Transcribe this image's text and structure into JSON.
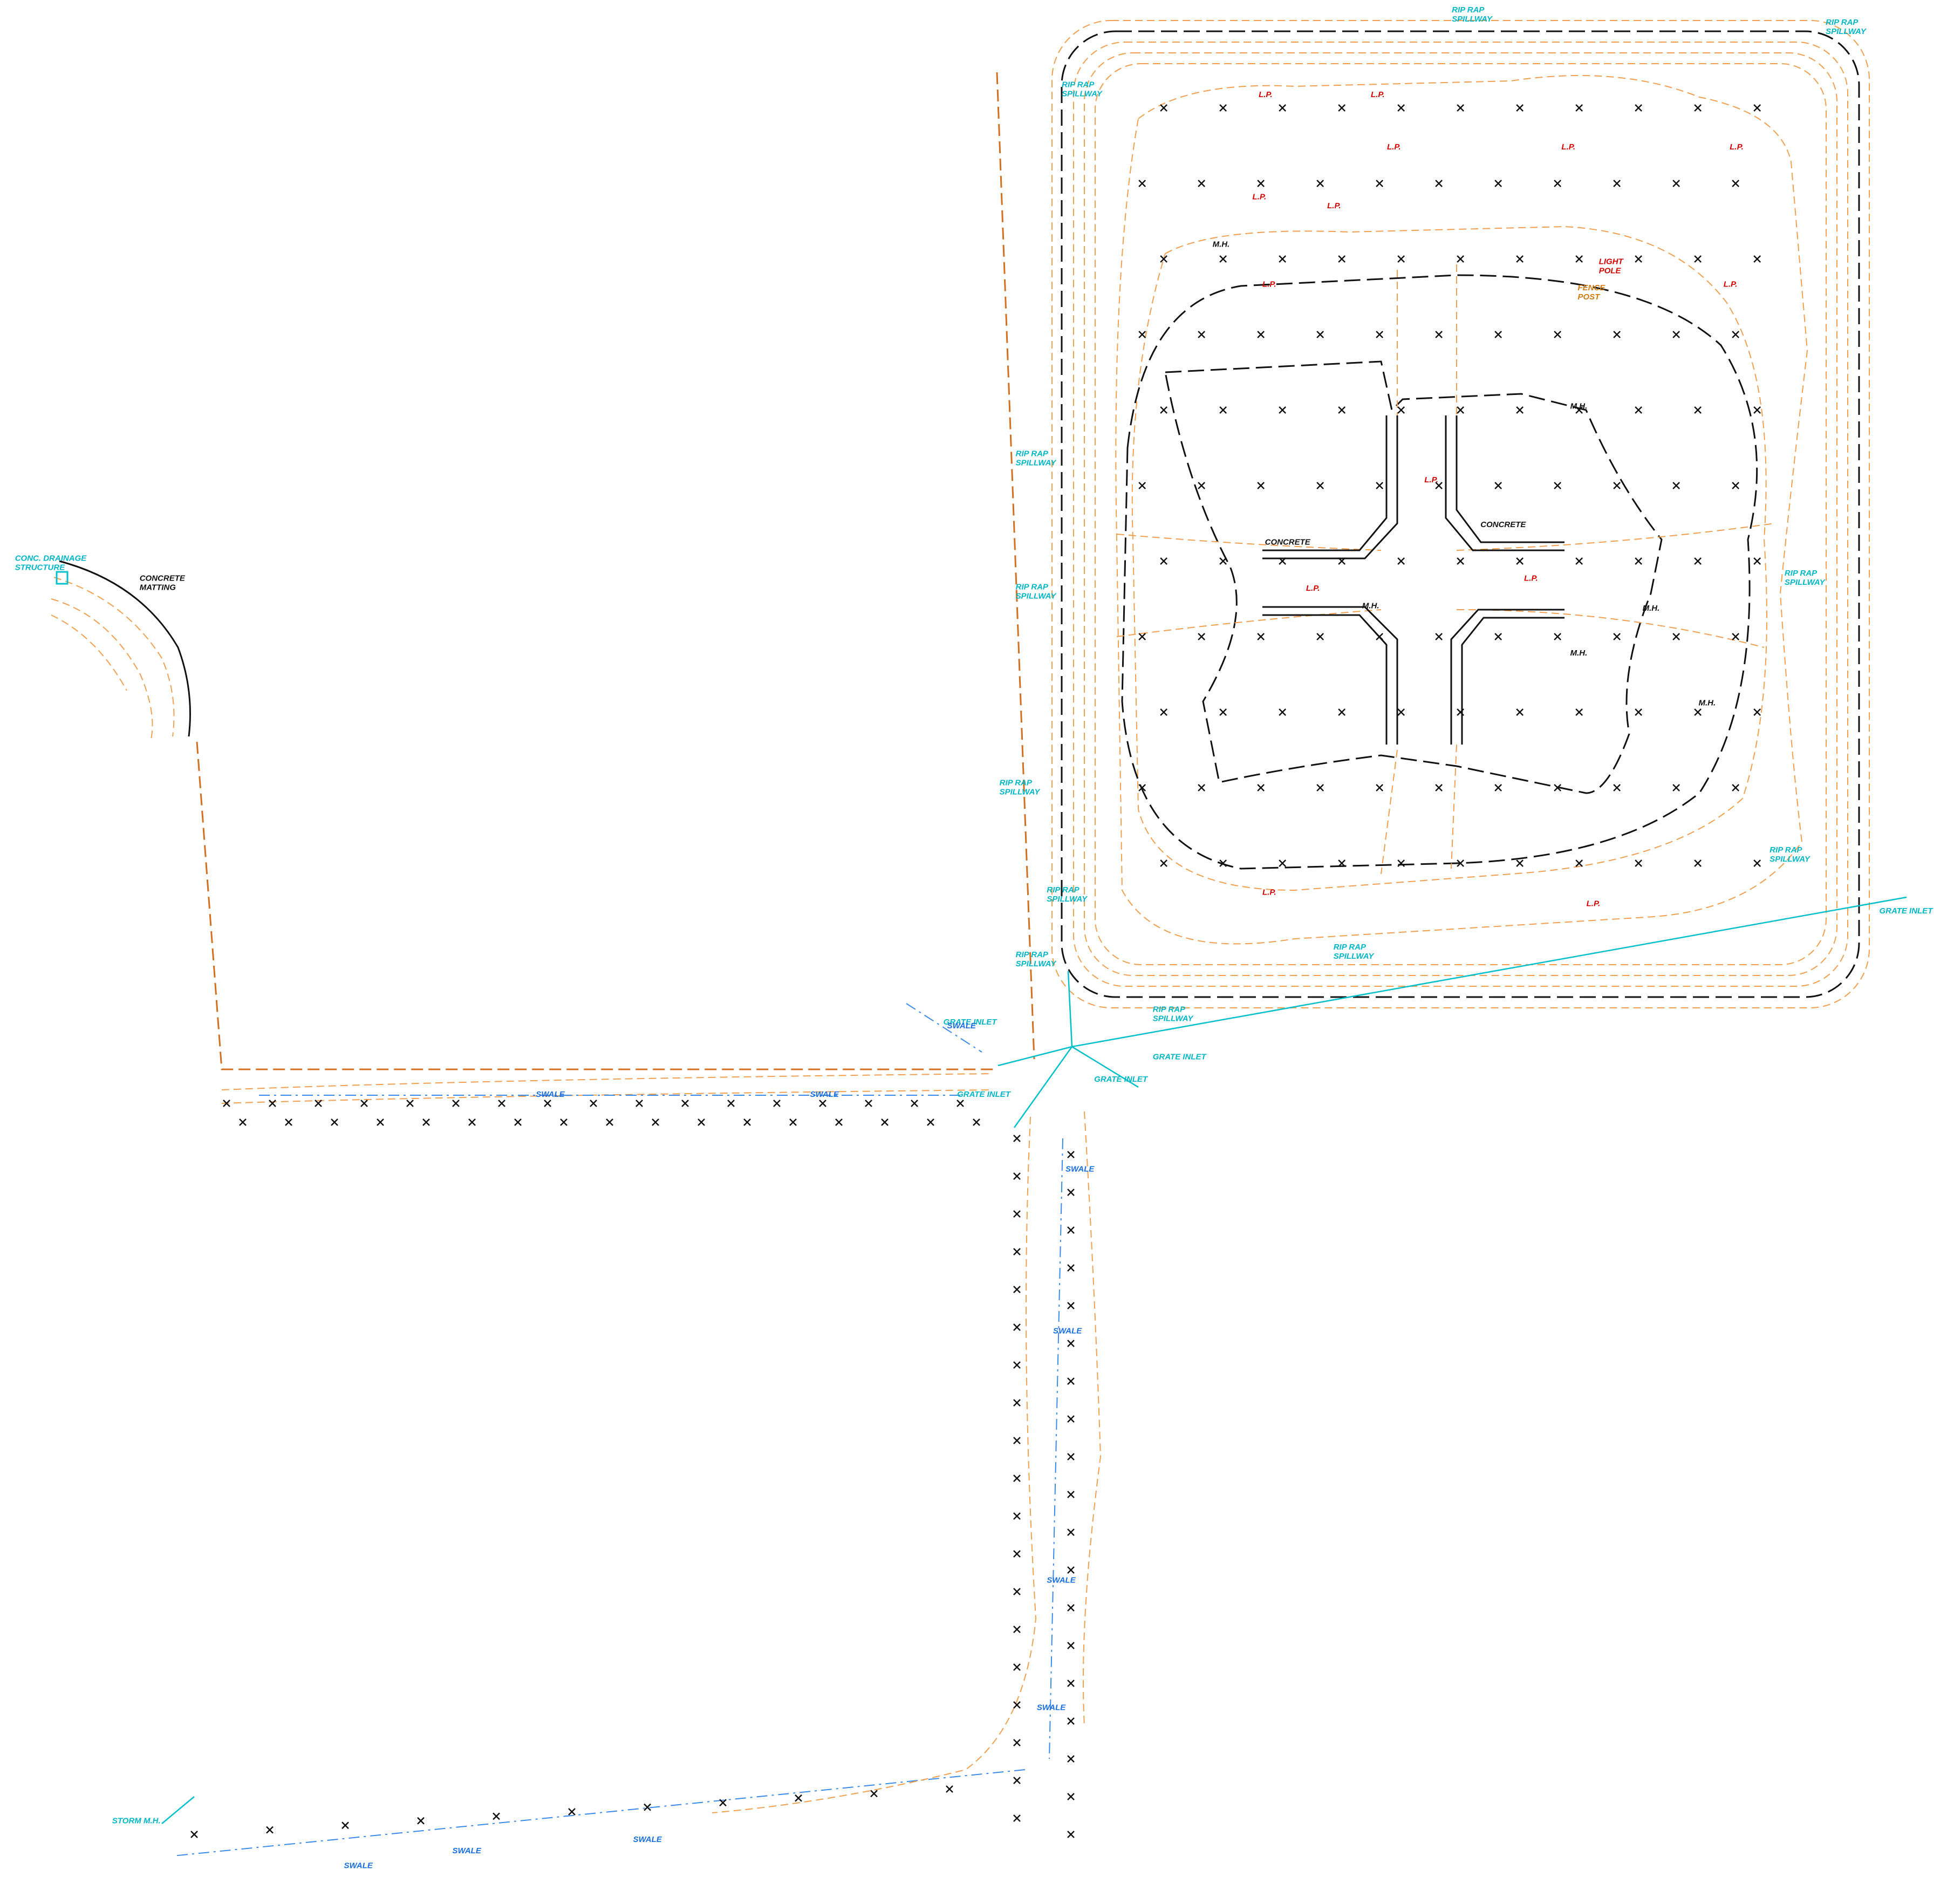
{
  "labels": {
    "conc_drainage": [
      "CONC. DRAINAGE",
      "STRUCTURE"
    ],
    "concrete_matting": [
      "CONCRETE",
      "MATTING"
    ],
    "rip_rap": [
      "RIP RAP",
      "SPILLWAY"
    ],
    "grate_inlet": "GRATE INLET",
    "storm_mh": "STORM M.H.",
    "swale": "SWALE",
    "light_pole": [
      "LIGHT",
      "POLE"
    ],
    "fence_post": [
      "FENCE",
      "POST"
    ],
    "concrete": "CONCRETE",
    "lp": "L.P.",
    "mh": "M.H."
  }
}
